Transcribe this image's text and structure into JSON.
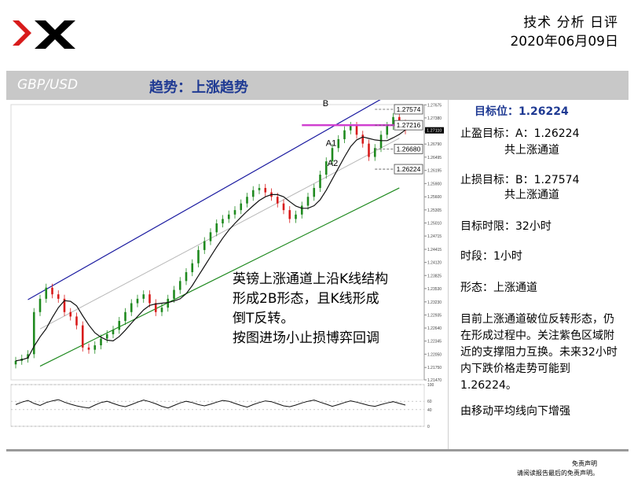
{
  "header": {
    "logo_text": "XM",
    "title": "技术 分析 日评",
    "date": "2020年06月09日"
  },
  "band": {
    "pair": "GBP/USD",
    "trend": "趋势：上涨趋势"
  },
  "side_panel": {
    "target": "目标位：1.26224",
    "take_profit": "止盈目标：A：1.26224",
    "take_profit_sub": "共上涨通道",
    "stop_loss": "止损目标：B：1.27574",
    "stop_loss_sub": "共上涨通道",
    "time_limit": "目标时限：32小时",
    "timeframe": "时段：1小时",
    "formation": "形态：上涨通道",
    "description": "目前上涨通道破位反转形态，仍在形成过程中。关注紫色区域附近的支撑阻力互换。未来32小时内下跌价格走势可能到1.26224。",
    "ma_note": "由移动平均线向下增强"
  },
  "annotation": {
    "lines": [
      "英镑上涨通道上沿K线结构",
      "形成2B形态，且K线形成",
      "倒T反转。",
      "按图进场小止损博弈回调"
    ]
  },
  "disclaimer": {
    "title": "免责声明",
    "body": "请阅读报告最后的免责声明。"
  },
  "colors": {
    "upper_channel": "#1a1aa0",
    "lower_channel": "#1f8a1f",
    "mid_line": "#b8b8b8",
    "up_candle": "#1f8a1f",
    "down_candle": "#d81b1b",
    "moving_average": "#111111",
    "resistance_zone": "#d040d0",
    "accent_blue": "#1f3a93"
  },
  "chart_data": {
    "type": "candlestick",
    "symbol": "GBP/USD",
    "timeframe": "1小时",
    "ylim": [
      1.2147,
      1.2768
    ],
    "y_ticks": [
      "1.27675",
      "1.27380",
      "1.27080",
      "1.26790",
      "1.26495",
      "1.26195",
      "1.25900",
      "1.25600",
      "1.25305",
      "1.25010",
      "1.24715",
      "1.24415",
      "1.24120",
      "1.23825",
      "1.23530",
      "1.23230",
      "1.22935",
      "1.22640",
      "1.22345",
      "1.22050",
      "1.21750",
      "1.21470"
    ],
    "price_tag": "1.27110",
    "closes": [
      1.219,
      1.2195,
      1.2205,
      1.23,
      1.233,
      1.2355,
      1.234,
      1.233,
      1.23,
      1.229,
      1.227,
      1.222,
      1.2215,
      1.2225,
      1.224,
      1.225,
      1.226,
      1.228,
      1.23,
      1.232,
      1.233,
      1.234,
      1.232,
      1.23,
      1.231,
      1.233,
      1.235,
      1.237,
      1.239,
      1.241,
      1.244,
      1.246,
      1.248,
      1.25,
      1.251,
      1.252,
      1.253,
      1.2545,
      1.256,
      1.2575,
      1.258,
      1.257,
      1.256,
      1.2545,
      1.253,
      1.251,
      1.252,
      1.254,
      1.256,
      1.258,
      1.261,
      1.264,
      1.267,
      1.269,
      1.271,
      1.272,
      1.27,
      1.268,
      1.265,
      1.267,
      1.27,
      1.272,
      1.274,
      1.2725,
      1.271
    ],
    "levels": [
      {
        "label": "B",
        "value_label": "1.27574",
        "value": 1.27574
      },
      {
        "label": "",
        "value_label": "1.27216",
        "value": 1.27216
      },
      {
        "label": "A1",
        "value_label": "1.26680",
        "value": 1.2668
      },
      {
        "label": "A2",
        "value_label": "1.26224",
        "value": 1.26224
      }
    ],
    "oscillator": {
      "levels_label": [
        "100",
        "60",
        "40",
        "0"
      ],
      "values": [
        52,
        58,
        62,
        55,
        50,
        57,
        61,
        64,
        58,
        53,
        49,
        46,
        44,
        51,
        57,
        60,
        55,
        50,
        47,
        52,
        58,
        63,
        59,
        54,
        48,
        44,
        50,
        56,
        60,
        57,
        52,
        49,
        53,
        58,
        62,
        60,
        55,
        50,
        46,
        52,
        57,
        61,
        59,
        54,
        49,
        47,
        51,
        56,
        60,
        63,
        58,
        53,
        48,
        52,
        57,
        61,
        58,
        54,
        50,
        48,
        52,
        56,
        59,
        55,
        51
      ]
    }
  }
}
